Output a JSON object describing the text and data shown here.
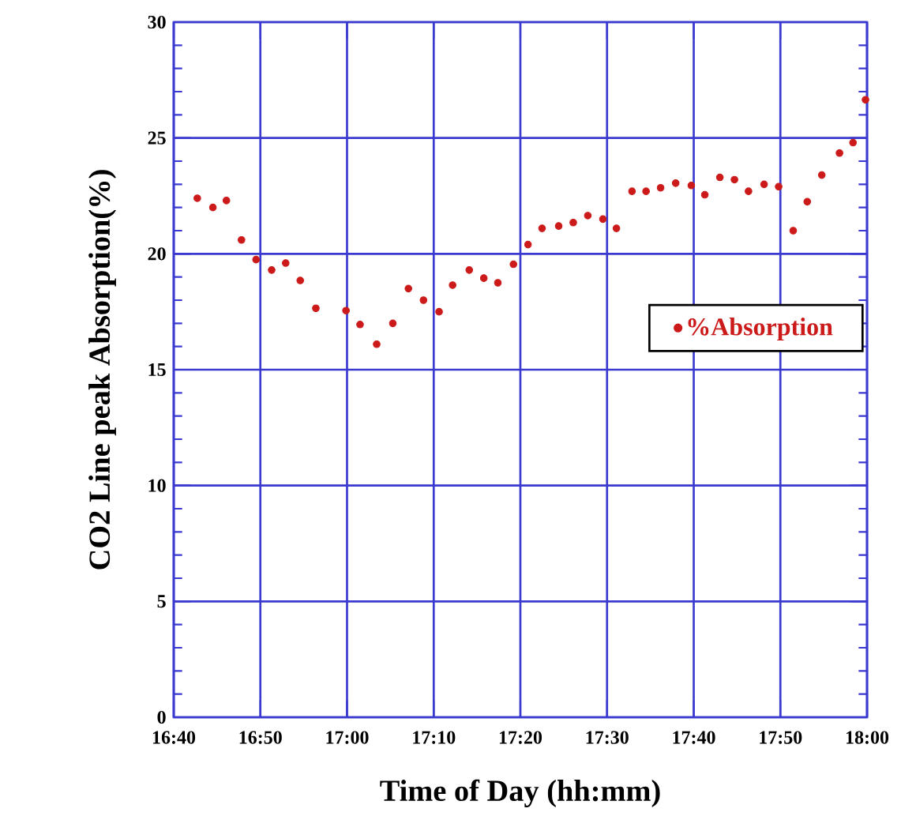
{
  "chart_data": {
    "type": "scatter",
    "xlabel": "Time of Day (hh:mm)",
    "ylabel": "CO2 Line peak Absorption(%)",
    "xlim": [
      16.6667,
      18
    ],
    "ylim": [
      0,
      30
    ],
    "xticks": [
      {
        "value": 16.6667,
        "label": "16:40"
      },
      {
        "value": 16.8333,
        "label": "16:50"
      },
      {
        "value": 17,
        "label": "17:00"
      },
      {
        "value": 17.1667,
        "label": "17:10"
      },
      {
        "value": 17.3333,
        "label": "17:20"
      },
      {
        "value": 17.5,
        "label": "17:30"
      },
      {
        "value": 17.6667,
        "label": "17:40"
      },
      {
        "value": 17.8333,
        "label": "17:50"
      },
      {
        "value": 18,
        "label": "18:00"
      }
    ],
    "yticks": [
      0,
      5,
      10,
      15,
      20,
      25,
      30
    ],
    "grid": true,
    "legend": "right",
    "marker": "circle",
    "series": [
      {
        "name": "%Absorption",
        "color": "#cc1a1a",
        "x": [
          16.712,
          16.742,
          16.768,
          16.797,
          16.825,
          16.855,
          16.882,
          16.91,
          16.94,
          16.998,
          17.025,
          17.057,
          17.088,
          17.118,
          17.147,
          17.177,
          17.203,
          17.235,
          17.263,
          17.29,
          17.32,
          17.348,
          17.375,
          17.407,
          17.435,
          17.463,
          17.492,
          17.518,
          17.548,
          17.575,
          17.603,
          17.632,
          17.662,
          17.688,
          17.717,
          17.745,
          17.772,
          17.802,
          17.83,
          17.858,
          17.885,
          17.913,
          17.947,
          17.973,
          17.997
        ],
        "values": [
          22.4,
          22.0,
          22.3,
          20.6,
          19.75,
          19.3,
          19.6,
          18.85,
          17.65,
          17.55,
          16.95,
          16.1,
          17.0,
          18.5,
          18.0,
          17.5,
          18.65,
          19.3,
          18.95,
          18.75,
          19.55,
          20.4,
          21.1,
          21.2,
          21.35,
          21.65,
          21.5,
          21.1,
          22.7,
          22.7,
          22.85,
          23.05,
          22.95,
          22.55,
          23.3,
          23.2,
          22.7,
          23.0,
          22.9,
          21.0,
          22.25,
          23.4,
          24.35,
          24.8,
          26.65
        ]
      }
    ]
  }
}
